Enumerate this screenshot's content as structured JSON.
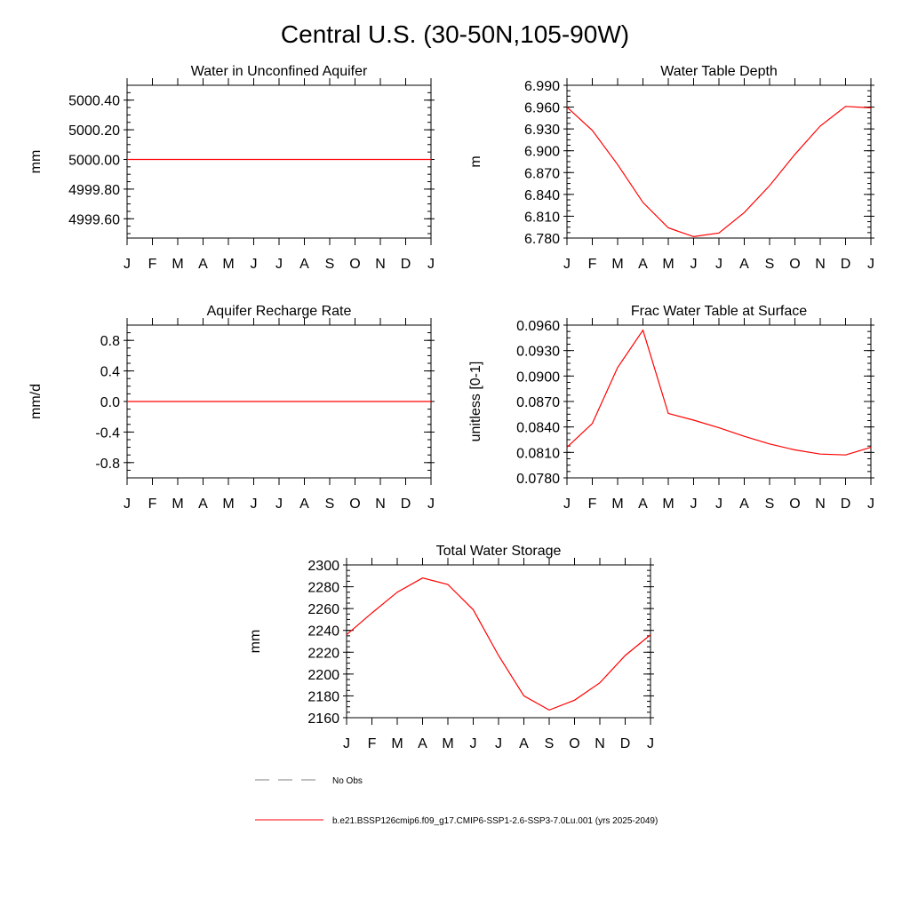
{
  "page": {
    "title": "Central U.S. (30-50N,105-90W)"
  },
  "months": [
    "J",
    "F",
    "M",
    "A",
    "M",
    "J",
    "J",
    "A",
    "S",
    "O",
    "N",
    "D",
    "J"
  ],
  "chart_data": [
    {
      "id": "unconfined",
      "type": "line",
      "title": "Water in Unconfined Aquifer",
      "ylabel": "mm",
      "ylim": [
        4999.47,
        5000.5
      ],
      "yticks": [
        4999.6,
        4999.8,
        5000.0,
        5000.2,
        5000.4
      ],
      "ytick_labels": [
        "4999.60",
        "4999.80",
        "5000.00",
        "5000.20",
        "5000.40"
      ],
      "series": [
        {
          "values": [
            5000,
            5000,
            5000,
            5000,
            5000,
            5000,
            5000,
            5000,
            5000,
            5000,
            5000,
            5000,
            5000
          ],
          "color": "#ff0000"
        }
      ]
    },
    {
      "id": "wtd",
      "type": "line",
      "title": "Water Table Depth",
      "ylabel": "m",
      "ylim": [
        6.78,
        6.99
      ],
      "yticks": [
        6.78,
        6.81,
        6.84,
        6.87,
        6.9,
        6.93,
        6.96,
        6.99
      ],
      "ytick_labels": [
        "6.780",
        "6.810",
        "6.840",
        "6.870",
        "6.900",
        "6.930",
        "6.960",
        "6.990"
      ],
      "series": [
        {
          "values": [
            6.96,
            6.928,
            6.881,
            6.829,
            6.794,
            6.782,
            6.787,
            6.815,
            6.852,
            6.895,
            6.934,
            6.961,
            6.959
          ],
          "color": "#ff0000"
        }
      ]
    },
    {
      "id": "recharge",
      "type": "line",
      "title": "Aquifer Recharge Rate",
      "ylabel": "mm/d",
      "ylim": [
        -1.0,
        1.0
      ],
      "yticks": [
        -0.8,
        -0.4,
        0.0,
        0.4,
        0.8
      ],
      "ytick_labels": [
        "-0.8",
        "-0.4",
        "0.0",
        "0.4",
        "0.8"
      ],
      "series": [
        {
          "values": [
            0,
            0,
            0,
            0,
            0,
            0,
            0,
            0,
            0,
            0,
            0,
            0,
            0
          ],
          "color": "#ff0000"
        }
      ]
    },
    {
      "id": "fracwt",
      "type": "line",
      "title": "Frac Water Table at Surface",
      "ylabel": "unitless [0-1]",
      "ylim": [
        0.078,
        0.096
      ],
      "yticks": [
        0.078,
        0.081,
        0.084,
        0.087,
        0.09,
        0.093,
        0.096
      ],
      "ytick_labels": [
        "0.0780",
        "0.0810",
        "0.0840",
        "0.0870",
        "0.0900",
        "0.0930",
        "0.0960"
      ],
      "series": [
        {
          "values": [
            0.0816,
            0.0844,
            0.091,
            0.0954,
            0.0856,
            0.0848,
            0.0839,
            0.0829,
            0.082,
            0.0813,
            0.0808,
            0.0807,
            0.0816
          ],
          "color": "#ff0000"
        }
      ]
    },
    {
      "id": "tws",
      "type": "line",
      "title": "Total Water Storage",
      "ylabel": "mm",
      "ylim": [
        2160,
        2300
      ],
      "yticks": [
        2160,
        2180,
        2200,
        2220,
        2240,
        2260,
        2280,
        2300
      ],
      "ytick_labels": [
        "2160",
        "2180",
        "2200",
        "2220",
        "2240",
        "2260",
        "2280",
        "2300"
      ],
      "series": [
        {
          "values": [
            2236,
            2256,
            2275,
            2288,
            2282,
            2259,
            2217,
            2180,
            2167,
            2176,
            2192,
            2217,
            2236
          ],
          "color": "#ff0000"
        }
      ]
    }
  ],
  "legend": {
    "items": [
      {
        "label": "No Obs",
        "style": "dashed",
        "color": "#808080"
      },
      {
        "label": "b.e21.BSSP126cmip6.f09_g17.CMIP6-SSP1-2.6-SSP3-7.0Lu.001 (yrs 2025-2049)",
        "style": "solid",
        "color": "#ff0000"
      }
    ]
  }
}
